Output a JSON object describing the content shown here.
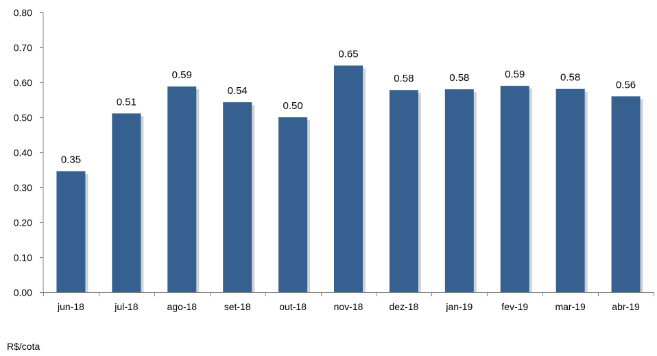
{
  "chart_data": {
    "type": "bar",
    "title": "",
    "xlabel": "",
    "ylabel": "",
    "categories": [
      "jun-18",
      "jul-18",
      "ago-18",
      "set-18",
      "out-18",
      "nov-18",
      "dez-18",
      "jan-19",
      "fev-19",
      "mar-19",
      "abr-19"
    ],
    "values": [
      0.346,
      0.511,
      0.588,
      0.543,
      0.5,
      0.648,
      0.578,
      0.58,
      0.59,
      0.581,
      0.56
    ],
    "data_labels": [
      "0.35",
      "0.51",
      "0.59",
      "0.54",
      "0.50",
      "0.65",
      "0.58",
      "0.58",
      "0.59",
      "0.58",
      "0.56"
    ],
    "ylim": [
      0,
      0.8
    ],
    "yticks": [
      "0.00",
      "0.10",
      "0.20",
      "0.30",
      "0.40",
      "0.50",
      "0.60",
      "0.70",
      "0.80"
    ],
    "grid": false,
    "legend": "none",
    "bar_color": "#35608F",
    "shadow_color": "#BFBFBF"
  },
  "footnote": "R$/cota"
}
